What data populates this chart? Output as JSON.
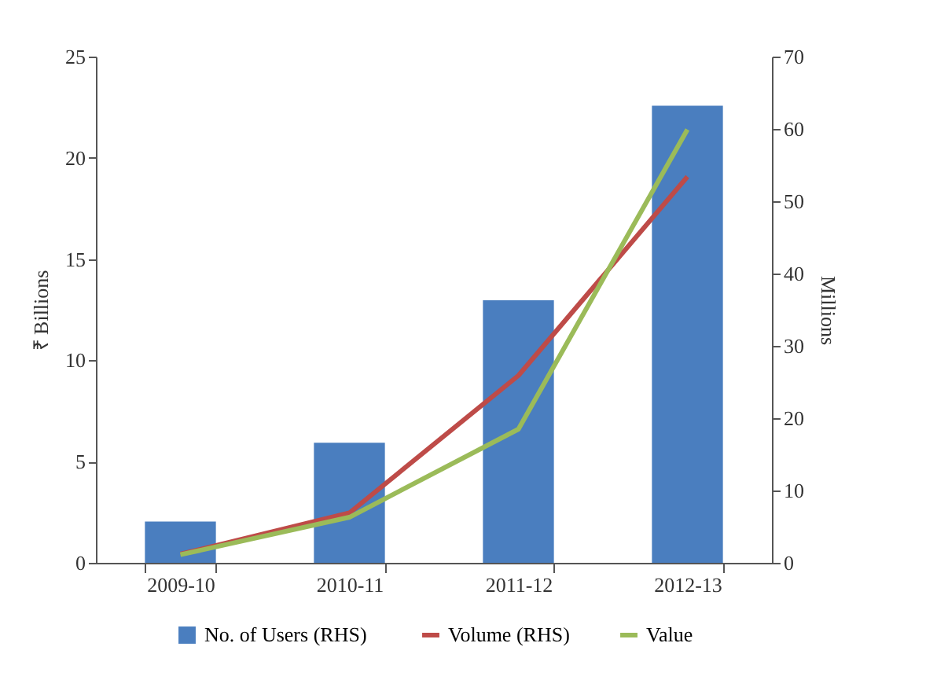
{
  "chart_data": {
    "type": "bar",
    "ylabel": "₹ Billions",
    "y2label": "Millions",
    "categories": [
      "2009-10",
      "2010-11",
      "2011-12",
      "2012-13"
    ],
    "series": [
      {
        "name": "No. of Users  (RHS)",
        "axis": "y2",
        "color": "#4a7ebf",
        "values": [
          5.7,
          16.6,
          36.3,
          63.2
        ]
      },
      {
        "name": "Volume (RHS)",
        "type": "line",
        "axis": "y2",
        "color": "#be4b48",
        "values": [
          1.2,
          6.9,
          25.9,
          53.4
        ]
      },
      {
        "name": "Value",
        "type": "line",
        "color": "#9bbb59",
        "values": [
          0.4,
          2.25,
          6.6,
          21.4
        ]
      }
    ],
    "ylim": [
      0,
      25
    ],
    "yticks": [
      0,
      5,
      10,
      15,
      20,
      25
    ],
    "y2lim": [
      0,
      70
    ],
    "y2ticks": [
      0,
      10,
      20,
      30,
      40,
      50,
      60,
      70
    ],
    "grid": false,
    "legend": "bottom"
  }
}
